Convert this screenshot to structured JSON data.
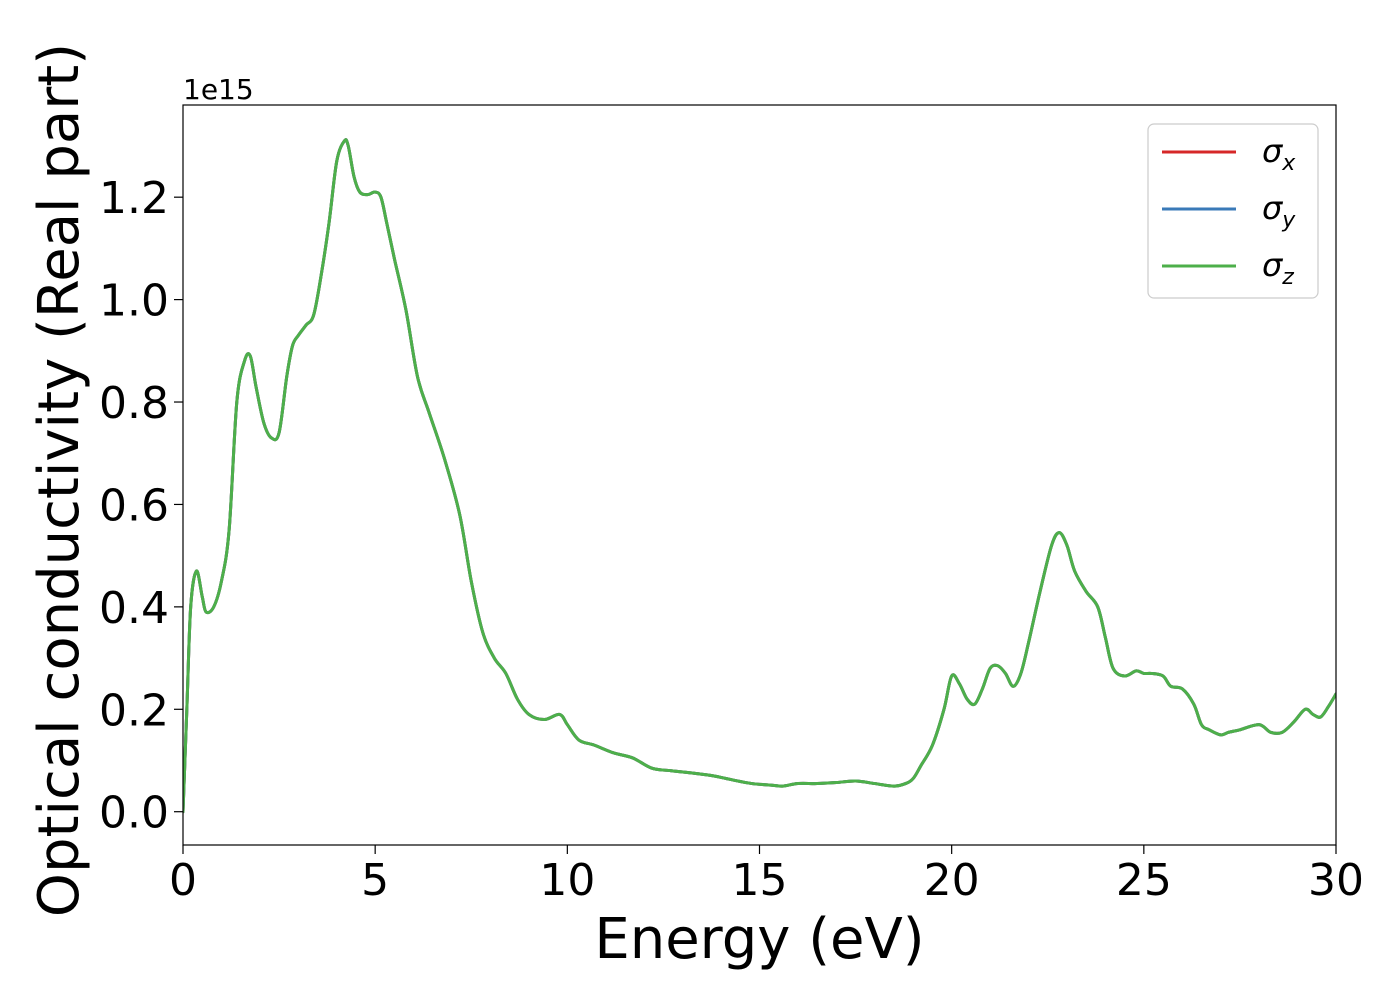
{
  "chart_data": {
    "type": "line",
    "title": "",
    "xlabel": "Energy (eV)",
    "ylabel": "Optical conductivity (Real part)",
    "y_offset_label": "1e15",
    "xlim": [
      0,
      30
    ],
    "ylim": [
      -0.065,
      1.38
    ],
    "xticks": [
      0,
      5,
      10,
      15,
      20,
      25,
      30
    ],
    "xtick_labels": [
      "0",
      "5",
      "10",
      "15",
      "20",
      "25",
      "30"
    ],
    "yticks": [
      0.0,
      0.2,
      0.4,
      0.6,
      0.8,
      1.0,
      1.2
    ],
    "ytick_labels": [
      "0.0",
      "0.2",
      "0.4",
      "0.6",
      "0.8",
      "1.0",
      "1.2"
    ],
    "grid": false,
    "legend_position": "top-right",
    "series": [
      {
        "name": "σx",
        "name_base": "σ",
        "name_sub": "x",
        "color": "#d62728",
        "x": [
          0,
          0.1,
          0.2,
          0.35,
          0.5,
          0.6,
          0.8,
          1.0,
          1.2,
          1.4,
          1.6,
          1.75,
          1.9,
          2.1,
          2.3,
          2.5,
          2.7,
          2.85,
          3.0,
          3.2,
          3.4,
          3.6,
          3.8,
          4.0,
          4.2,
          4.3,
          4.45,
          4.6,
          4.8,
          5.0,
          5.15,
          5.3,
          5.5,
          5.8,
          6.1,
          6.4,
          6.8,
          7.2,
          7.5,
          7.8,
          8.1,
          8.4,
          8.7,
          9.0,
          9.4,
          9.8,
          10.0,
          10.3,
          10.7,
          11.2,
          11.7,
          12.2,
          12.7,
          13.3,
          13.8,
          14.3,
          14.8,
          15.3,
          15.6,
          16.0,
          16.5,
          17.0,
          17.5,
          18.0,
          18.5,
          18.8,
          19.0,
          19.2,
          19.5,
          19.8,
          20.0,
          20.2,
          20.4,
          20.6,
          20.8,
          21.0,
          21.2,
          21.4,
          21.6,
          21.8,
          22.0,
          22.3,
          22.6,
          22.8,
          23.0,
          23.2,
          23.5,
          23.8,
          24.0,
          24.2,
          24.5,
          24.8,
          25.0,
          25.2,
          25.5,
          25.7,
          26.0,
          26.3,
          26.5,
          26.7,
          27.0,
          27.2,
          27.5,
          28.0,
          28.3,
          28.6,
          28.9,
          29.2,
          29.4,
          29.6,
          29.8,
          30.0
        ],
        "y": [
          0.0,
          0.2,
          0.4,
          0.47,
          0.42,
          0.39,
          0.4,
          0.45,
          0.55,
          0.8,
          0.88,
          0.89,
          0.83,
          0.76,
          0.73,
          0.74,
          0.85,
          0.91,
          0.93,
          0.95,
          0.97,
          1.05,
          1.15,
          1.27,
          1.31,
          1.3,
          1.24,
          1.21,
          1.205,
          1.21,
          1.2,
          1.15,
          1.08,
          0.98,
          0.85,
          0.78,
          0.69,
          0.58,
          0.45,
          0.35,
          0.3,
          0.27,
          0.22,
          0.19,
          0.18,
          0.19,
          0.17,
          0.14,
          0.13,
          0.115,
          0.105,
          0.085,
          0.08,
          0.075,
          0.07,
          0.062,
          0.055,
          0.052,
          0.05,
          0.055,
          0.055,
          0.057,
          0.06,
          0.055,
          0.05,
          0.055,
          0.065,
          0.09,
          0.13,
          0.2,
          0.265,
          0.25,
          0.22,
          0.21,
          0.24,
          0.28,
          0.285,
          0.27,
          0.245,
          0.27,
          0.33,
          0.43,
          0.52,
          0.545,
          0.52,
          0.47,
          0.43,
          0.4,
          0.34,
          0.28,
          0.265,
          0.275,
          0.27,
          0.27,
          0.265,
          0.245,
          0.24,
          0.21,
          0.17,
          0.16,
          0.15,
          0.155,
          0.16,
          0.17,
          0.155,
          0.155,
          0.175,
          0.2,
          0.19,
          0.185,
          0.205,
          0.23
        ]
      },
      {
        "name": "σy",
        "name_base": "σ",
        "name_sub": "y",
        "color": "#3a7ab8",
        "x": [
          0,
          0.1,
          0.2,
          0.35,
          0.5,
          0.6,
          0.8,
          1.0,
          1.2,
          1.4,
          1.6,
          1.75,
          1.9,
          2.1,
          2.3,
          2.5,
          2.7,
          2.85,
          3.0,
          3.2,
          3.4,
          3.6,
          3.8,
          4.0,
          4.2,
          4.3,
          4.45,
          4.6,
          4.8,
          5.0,
          5.15,
          5.3,
          5.5,
          5.8,
          6.1,
          6.4,
          6.8,
          7.2,
          7.5,
          7.8,
          8.1,
          8.4,
          8.7,
          9.0,
          9.4,
          9.8,
          10.0,
          10.3,
          10.7,
          11.2,
          11.7,
          12.2,
          12.7,
          13.3,
          13.8,
          14.3,
          14.8,
          15.3,
          15.6,
          16.0,
          16.5,
          17.0,
          17.5,
          18.0,
          18.5,
          18.8,
          19.0,
          19.2,
          19.5,
          19.8,
          20.0,
          20.2,
          20.4,
          20.6,
          20.8,
          21.0,
          21.2,
          21.4,
          21.6,
          21.8,
          22.0,
          22.3,
          22.6,
          22.8,
          23.0,
          23.2,
          23.5,
          23.8,
          24.0,
          24.2,
          24.5,
          24.8,
          25.0,
          25.2,
          25.5,
          25.7,
          26.0,
          26.3,
          26.5,
          26.7,
          27.0,
          27.2,
          27.5,
          28.0,
          28.3,
          28.6,
          28.9,
          29.2,
          29.4,
          29.6,
          29.8,
          30.0
        ],
        "y": [
          0.0,
          0.2,
          0.4,
          0.47,
          0.42,
          0.39,
          0.4,
          0.45,
          0.55,
          0.8,
          0.88,
          0.89,
          0.83,
          0.76,
          0.73,
          0.74,
          0.85,
          0.91,
          0.93,
          0.95,
          0.97,
          1.05,
          1.15,
          1.27,
          1.31,
          1.3,
          1.24,
          1.21,
          1.205,
          1.21,
          1.2,
          1.15,
          1.08,
          0.98,
          0.85,
          0.78,
          0.69,
          0.58,
          0.45,
          0.35,
          0.3,
          0.27,
          0.22,
          0.19,
          0.18,
          0.19,
          0.17,
          0.14,
          0.13,
          0.115,
          0.105,
          0.085,
          0.08,
          0.075,
          0.07,
          0.062,
          0.055,
          0.052,
          0.05,
          0.055,
          0.055,
          0.057,
          0.06,
          0.055,
          0.05,
          0.055,
          0.065,
          0.09,
          0.13,
          0.2,
          0.265,
          0.25,
          0.22,
          0.21,
          0.24,
          0.28,
          0.285,
          0.27,
          0.245,
          0.27,
          0.33,
          0.43,
          0.52,
          0.545,
          0.52,
          0.47,
          0.43,
          0.4,
          0.34,
          0.28,
          0.265,
          0.275,
          0.27,
          0.27,
          0.265,
          0.245,
          0.24,
          0.21,
          0.17,
          0.16,
          0.15,
          0.155,
          0.16,
          0.17,
          0.155,
          0.155,
          0.175,
          0.2,
          0.19,
          0.185,
          0.205,
          0.23
        ]
      },
      {
        "name": "σz",
        "name_base": "σ",
        "name_sub": "z",
        "color": "#4daf4a",
        "x": [
          0,
          0.1,
          0.2,
          0.35,
          0.5,
          0.6,
          0.8,
          1.0,
          1.2,
          1.4,
          1.6,
          1.75,
          1.9,
          2.1,
          2.3,
          2.5,
          2.7,
          2.85,
          3.0,
          3.2,
          3.4,
          3.6,
          3.8,
          4.0,
          4.2,
          4.3,
          4.45,
          4.6,
          4.8,
          5.0,
          5.15,
          5.3,
          5.5,
          5.8,
          6.1,
          6.4,
          6.8,
          7.2,
          7.5,
          7.8,
          8.1,
          8.4,
          8.7,
          9.0,
          9.4,
          9.8,
          10.0,
          10.3,
          10.7,
          11.2,
          11.7,
          12.2,
          12.7,
          13.3,
          13.8,
          14.3,
          14.8,
          15.3,
          15.6,
          16.0,
          16.5,
          17.0,
          17.5,
          18.0,
          18.5,
          18.8,
          19.0,
          19.2,
          19.5,
          19.8,
          20.0,
          20.2,
          20.4,
          20.6,
          20.8,
          21.0,
          21.2,
          21.4,
          21.6,
          21.8,
          22.0,
          22.3,
          22.6,
          22.8,
          23.0,
          23.2,
          23.5,
          23.8,
          24.0,
          24.2,
          24.5,
          24.8,
          25.0,
          25.2,
          25.5,
          25.7,
          26.0,
          26.3,
          26.5,
          26.7,
          27.0,
          27.2,
          27.5,
          28.0,
          28.3,
          28.6,
          28.9,
          29.2,
          29.4,
          29.6,
          29.8,
          30.0
        ],
        "y": [
          0.0,
          0.2,
          0.4,
          0.47,
          0.42,
          0.39,
          0.4,
          0.45,
          0.55,
          0.8,
          0.88,
          0.89,
          0.83,
          0.76,
          0.73,
          0.74,
          0.85,
          0.91,
          0.93,
          0.95,
          0.97,
          1.05,
          1.15,
          1.27,
          1.31,
          1.3,
          1.24,
          1.21,
          1.205,
          1.21,
          1.2,
          1.15,
          1.08,
          0.98,
          0.85,
          0.78,
          0.69,
          0.58,
          0.45,
          0.35,
          0.3,
          0.27,
          0.22,
          0.19,
          0.18,
          0.19,
          0.17,
          0.14,
          0.13,
          0.115,
          0.105,
          0.085,
          0.08,
          0.075,
          0.07,
          0.062,
          0.055,
          0.052,
          0.05,
          0.055,
          0.055,
          0.057,
          0.06,
          0.055,
          0.05,
          0.055,
          0.065,
          0.09,
          0.13,
          0.2,
          0.265,
          0.25,
          0.22,
          0.21,
          0.24,
          0.28,
          0.285,
          0.27,
          0.245,
          0.27,
          0.33,
          0.43,
          0.52,
          0.545,
          0.52,
          0.47,
          0.43,
          0.4,
          0.34,
          0.28,
          0.265,
          0.275,
          0.27,
          0.27,
          0.265,
          0.245,
          0.24,
          0.21,
          0.17,
          0.16,
          0.15,
          0.155,
          0.16,
          0.17,
          0.155,
          0.155,
          0.175,
          0.2,
          0.19,
          0.185,
          0.205,
          0.23
        ]
      }
    ]
  }
}
